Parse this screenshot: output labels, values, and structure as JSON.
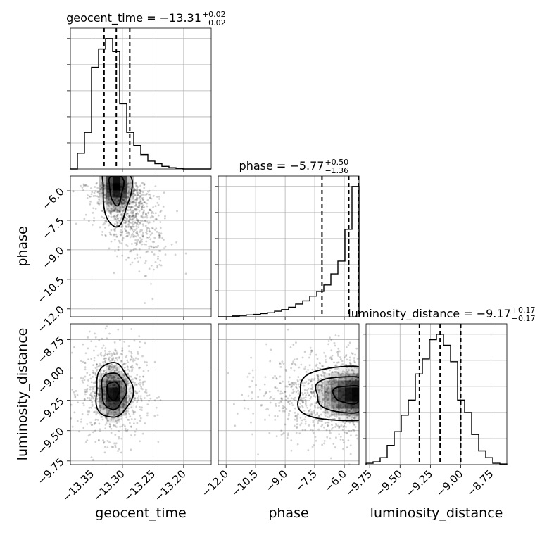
{
  "chart_data": {
    "type": "corner",
    "parameters": [
      "geocent_time",
      "phase",
      "luminosity_distance"
    ],
    "axis_labels": {
      "geocent_time": "geocent_time",
      "phase": "phase",
      "luminosity_distance": "luminosity_distance"
    },
    "ranges": {
      "geocent_time": [
        -13.385,
        -13.155
      ],
      "phase": [
        -12.4,
        -5.25
      ],
      "luminosity_distance": [
        -9.78,
        -8.62
      ]
    },
    "ticks": {
      "geocent_time": {
        "values": [
          -13.35,
          -13.3,
          -13.25,
          -13.2
        ],
        "labels": [
          "−13.35",
          "−13.30",
          "−13.25",
          "−13.20"
        ]
      },
      "phase": {
        "values": [
          -12.0,
          -10.5,
          -9.0,
          -7.5,
          -6.0
        ],
        "labels": [
          "−12.0",
          "−10.5",
          "−9.0",
          "−7.5",
          "−6.0"
        ]
      },
      "luminosity_distance": {
        "values": [
          -9.75,
          -9.5,
          -9.25,
          -9.0,
          -8.75
        ],
        "labels": [
          "−9.75",
          "−9.50",
          "−9.25",
          "−9.00",
          "−8.75"
        ]
      }
    },
    "grid": true,
    "titles": [
      {
        "param": "geocent_time",
        "name": "geocent_time",
        "median": "−13.31",
        "plus": "+0.02",
        "minus": "−0.02"
      },
      {
        "param": "phase",
        "name": "phase",
        "median": "−5.77",
        "plus": "+0.50",
        "minus": "−1.36"
      },
      {
        "param": "luminosity_distance",
        "name": "luminosity_distance",
        "median": "−9.17",
        "plus": "+0.17",
        "minus": "−0.17"
      }
    ],
    "histograms": {
      "geocent_time": {
        "bin_edges": [
          -13.385,
          -13.3735,
          -13.362,
          -13.3505,
          -13.339,
          -13.3275,
          -13.316,
          -13.3045,
          -13.293,
          -13.2815,
          -13.27,
          -13.2585,
          -13.247,
          -13.2355,
          -13.224,
          -13.2125,
          -13.201,
          -13.1895,
          -13.178,
          -13.1665,
          -13.155
        ],
        "counts": [
          0,
          12,
          28,
          78,
          92,
          100,
          90,
          50,
          28,
          18,
          11,
          6,
          4,
          2,
          1,
          0.5,
          0,
          0,
          0,
          0
        ],
        "quantiles": [
          -13.33,
          -13.31,
          -13.288
        ]
      },
      "phase": {
        "bin_edges": [
          -12.4,
          -12.0425,
          -11.685,
          -11.3275,
          -10.97,
          -10.6125,
          -10.255,
          -9.8975,
          -9.54,
          -9.1825,
          -8.825,
          -8.4675,
          -8.11,
          -7.7525,
          -7.395,
          -7.0375,
          -6.68,
          -6.3225,
          -5.965,
          -5.6075,
          -5.25
        ],
        "counts": [
          0,
          0,
          0.5,
          0.8,
          1.2,
          1.5,
          2,
          2.5,
          3.5,
          4.5,
          6,
          8,
          10,
          13,
          16,
          20,
          27,
          35,
          55,
          82
        ],
        "quantiles": [
          -7.13,
          -5.77,
          -5.27
        ]
      },
      "luminosity_distance": {
        "bin_edges": [
          -9.78,
          -9.722,
          -9.664,
          -9.606,
          -9.548,
          -9.49,
          -9.432,
          -9.374,
          -9.316,
          -9.258,
          -9.2,
          -9.142,
          -9.084,
          -9.026,
          -8.968,
          -8.91,
          -8.852,
          -8.794,
          -8.736,
          -8.678,
          -8.62
        ],
        "counts": [
          1,
          2,
          5,
          14,
          24,
          36,
          47,
          66,
          77,
          91,
          95,
          87,
          75,
          47,
          38,
          22,
          10,
          5,
          1,
          0.5
        ],
        "quantiles": [
          -9.34,
          -9.17,
          -9.0
        ]
      }
    },
    "joint": [
      {
        "x": "geocent_time",
        "y": "phase",
        "contour_center": [
          -13.31,
          -5.6
        ],
        "contour_sigma": [
          0.02,
          1.0
        ],
        "contour_levels": [
          0.6,
          1.2
        ],
        "density_peak": [
          -13.31,
          -5.7
        ]
      },
      {
        "x": "geocent_time",
        "y": "luminosity_distance",
        "contour_center": [
          -13.315,
          -9.17
        ],
        "contour_sigma": [
          0.02,
          0.15
        ],
        "contour_levels": [
          0.5,
          1.0,
          1.5
        ],
        "density_peak": [
          -13.315,
          -9.2
        ]
      },
      {
        "x": "phase",
        "y": "luminosity_distance",
        "contour_center": [
          -5.6,
          -9.2
        ],
        "contour_sigma": [
          1.4,
          0.15
        ],
        "contour_levels": [
          0.5,
          1.0,
          1.5
        ],
        "density_peak": [
          -5.4,
          -9.2
        ]
      }
    ]
  }
}
